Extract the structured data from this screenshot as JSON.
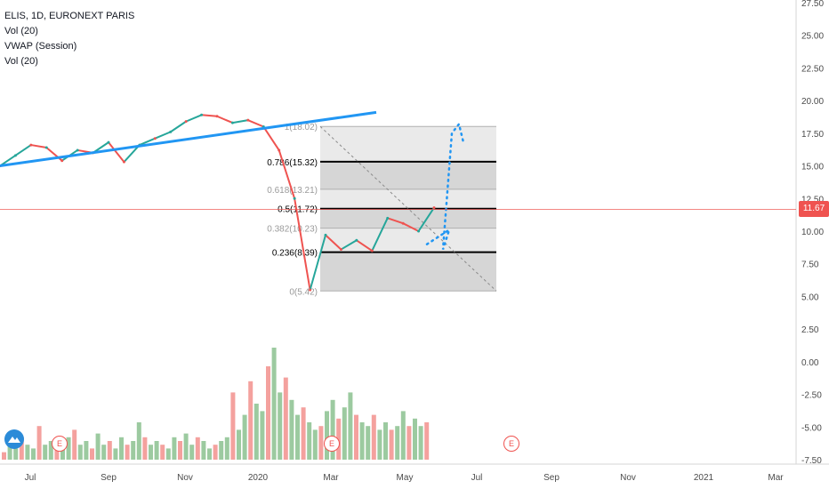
{
  "legend": {
    "symbol": "ELIS, 1D, EURONEXT PARIS",
    "line2": "Vol (20)",
    "line3": "VWAP (Session)",
    "line4": "Vol (20)"
  },
  "price_axis": [
    "27.50",
    "25.00",
    "22.50",
    "20.00",
    "17.50",
    "15.00",
    "12.50",
    "10.00",
    "7.50",
    "5.00",
    "2.50",
    "0.00",
    "-2.50",
    "-5.00",
    "-7.50"
  ],
  "time_axis": [
    "Jul",
    "Sep",
    "Nov",
    "2020",
    "Mar",
    "May",
    "Jul",
    "Sep",
    "Nov",
    "2021",
    "Mar"
  ],
  "current_price": "11.67",
  "fib_levels": [
    {
      "label": "1(18.02)",
      "value": 18.02,
      "bold": false
    },
    {
      "label": "0.786(15.32)",
      "value": 15.32,
      "bold": true
    },
    {
      "label": "0.618(13.21)",
      "value": 13.21,
      "bold": false
    },
    {
      "label": "0.5(11.72)",
      "value": 11.72,
      "bold": true
    },
    {
      "label": "0.382(10.23)",
      "value": 10.23,
      "bold": false
    },
    {
      "label": "0.236(8.39)",
      "value": 8.39,
      "bold": true
    },
    {
      "label": "0(5.42)",
      "value": 5.42,
      "bold": false
    }
  ],
  "earnings_marker": "E",
  "colors": {
    "up": "#26a69a",
    "down": "#ef5350",
    "trend": "#2196f3",
    "price_line": "#ef5350"
  },
  "chart_data": {
    "type": "line",
    "title": "ELIS, 1D, EURONEXT PARIS",
    "x_ticks": [
      "Jul",
      "Sep",
      "Nov",
      "2020",
      "Mar",
      "May",
      "Jul",
      "Sep",
      "Nov",
      "2021",
      "Mar"
    ],
    "y_range": [
      -7.5,
      27.5
    ],
    "series": [
      {
        "name": "ELIS",
        "points": [
          [
            "Jun",
            15.0
          ],
          [
            "Jul",
            15.8
          ],
          [
            "Jul",
            16.6
          ],
          [
            "Aug",
            16.4
          ],
          [
            "Aug",
            15.4
          ],
          [
            "Aug",
            16.2
          ],
          [
            "Sep",
            16.0
          ],
          [
            "Sep",
            16.8
          ],
          [
            "Oct",
            15.3
          ],
          [
            "Oct",
            16.6
          ],
          [
            "Nov",
            17.1
          ],
          [
            "Nov",
            17.6
          ],
          [
            "Dec",
            18.4
          ],
          [
            "Dec",
            18.9
          ],
          [
            "2020",
            18.8
          ],
          [
            "Jan",
            18.3
          ],
          [
            "Feb",
            18.5
          ],
          [
            "Feb",
            18.0
          ],
          [
            "Mar",
            16.2
          ],
          [
            "Mar",
            12.5
          ],
          [
            "Mar",
            5.5
          ],
          [
            "Mar",
            9.7
          ],
          [
            "Apr",
            8.6
          ],
          [
            "Apr",
            9.3
          ],
          [
            "Apr",
            8.5
          ],
          [
            "May",
            11.0
          ],
          [
            "May",
            10.6
          ],
          [
            "May",
            10.0
          ],
          [
            "May",
            11.8
          ]
        ]
      },
      {
        "name": "Projection",
        "points": [
          [
            "May",
            9.0
          ],
          [
            "May",
            10.1
          ],
          [
            "May",
            8.6
          ],
          [
            "Jun",
            17.5
          ],
          [
            "Jun",
            18.2
          ],
          [
            "Jun",
            16.8
          ]
        ]
      }
    ],
    "volume": [
      0.2,
      0.5,
      0.3,
      0.6,
      0.4,
      0.3,
      0.9,
      0.4,
      0.5,
      0.3,
      0.4,
      0.6,
      0.8,
      0.4,
      0.5,
      0.3,
      0.7,
      0.4,
      0.5,
      0.3,
      0.6,
      0.4,
      0.5,
      1.0,
      0.6,
      0.4,
      0.5,
      0.4,
      0.3,
      0.6,
      0.5,
      0.7,
      0.4,
      0.6,
      0.5,
      0.3,
      0.4,
      0.5,
      0.6,
      1.8,
      0.8,
      1.2,
      2.1,
      1.5,
      1.3,
      2.5,
      3.0,
      1.8,
      2.2,
      1.6,
      1.2,
      1.4,
      1.0,
      0.8,
      0.9,
      1.3,
      1.6,
      1.1,
      1.4,
      1.8,
      1.2,
      1.0,
      0.9,
      1.2,
      0.8,
      1.0,
      0.8,
      0.9,
      1.3,
      0.9,
      1.1,
      0.9,
      1.0
    ]
  }
}
